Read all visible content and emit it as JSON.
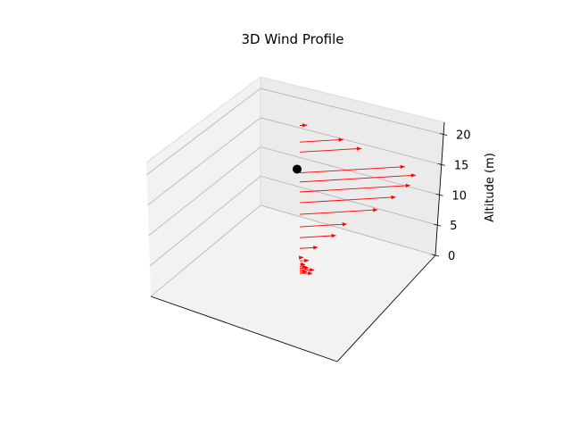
{
  "chart_data": {
    "type": "3d-quiver",
    "title": "3D Wind Profile",
    "xlabel": "",
    "ylabel": "",
    "zlabel": "Altitude (m)",
    "zlim": [
      0,
      22
    ],
    "z_ticks": [
      "0",
      "5",
      "10",
      "15",
      "20"
    ],
    "grid": true,
    "arrow_color": "#ff0000",
    "marker_color": "#000000",
    "marker_point": {
      "altitude": 13.5
    },
    "vectors": [
      {
        "altitude": 0.2,
        "u": 0.7,
        "v": 0.1
      },
      {
        "altitude": 0.4,
        "u": 0.4,
        "v": 0.1
      },
      {
        "altitude": 0.6,
        "u": 0.8,
        "v": 0.1
      },
      {
        "altitude": 0.8,
        "u": 0.5,
        "v": 0.0
      },
      {
        "altitude": 1.0,
        "u": 0.4,
        "v": 0.1
      },
      {
        "altitude": 1.3,
        "u": 0.3,
        "v": 0.1
      },
      {
        "altitude": 1.7,
        "u": 0.5,
        "v": 0.0
      },
      {
        "altitude": 2.1,
        "u": 0.2,
        "v": 0.0
      },
      {
        "altitude": 3.2,
        "u": 1.0,
        "v": 0.0
      },
      {
        "altitude": 4.5,
        "u": 2.0,
        "v": 0.0
      },
      {
        "altitude": 5.8,
        "u": 2.6,
        "v": 0.0
      },
      {
        "altitude": 7.3,
        "u": 4.3,
        "v": 0.0
      },
      {
        "altitude": 8.7,
        "u": 5.3,
        "v": 0.0
      },
      {
        "altitude": 10.0,
        "u": 6.1,
        "v": 0.0
      },
      {
        "altitude": 11.2,
        "u": 6.4,
        "v": 0.0
      },
      {
        "altitude": 12.3,
        "u": 5.8,
        "v": 0.0
      },
      {
        "altitude": 14.8,
        "u": 3.4,
        "v": 0.0
      },
      {
        "altitude": 16.0,
        "u": 2.4,
        "v": 0.0
      },
      {
        "altitude": 18.0,
        "u": 0.4,
        "v": 0.0
      }
    ]
  }
}
